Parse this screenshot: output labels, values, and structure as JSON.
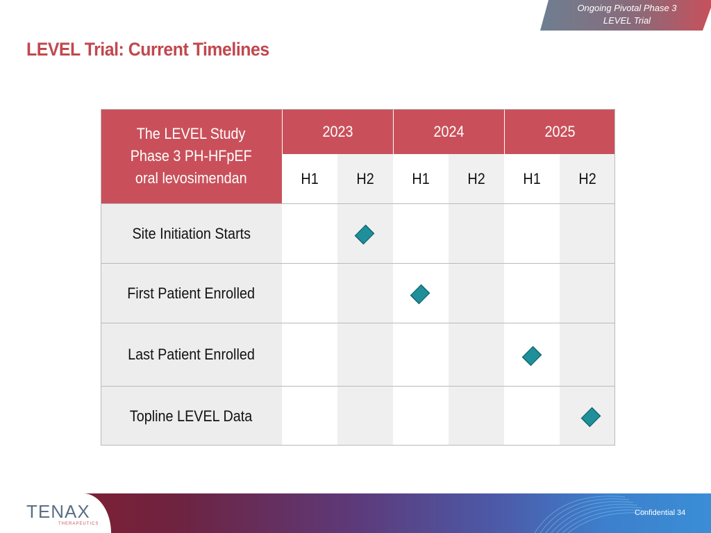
{
  "banner": {
    "line1": "Ongoing  Pivotal Phase 3",
    "line2": "LEVEL Trial"
  },
  "title": "LEVEL Trial: Current Timelines",
  "table": {
    "header_lines": [
      "The LEVEL Study",
      "Phase 3 PH-HFpEF",
      "oral levosimendan"
    ],
    "years": [
      "2023",
      "2024",
      "2025"
    ],
    "halves": [
      "H1",
      "H2",
      "H1",
      "H2",
      "H1",
      "H2"
    ],
    "rows": [
      {
        "label": "Site Initiation Starts",
        "milestone_period": "2023 H2"
      },
      {
        "label": "First Patient Enrolled",
        "milestone_period": "2024 H1"
      },
      {
        "label": "Last Patient Enrolled",
        "milestone_period": "2025 H1"
      },
      {
        "label": "Topline LEVEL Data",
        "milestone_period": "2025 H2"
      }
    ]
  },
  "colors": {
    "accent": "#c9505a",
    "title": "#c1474e",
    "milestone": "#1f8f99",
    "shade": "#efefef"
  },
  "footer": {
    "logo": "TENAX",
    "logo_sub": "THERAPEUTICS",
    "confidential": "Confidential",
    "page_number": "34"
  }
}
